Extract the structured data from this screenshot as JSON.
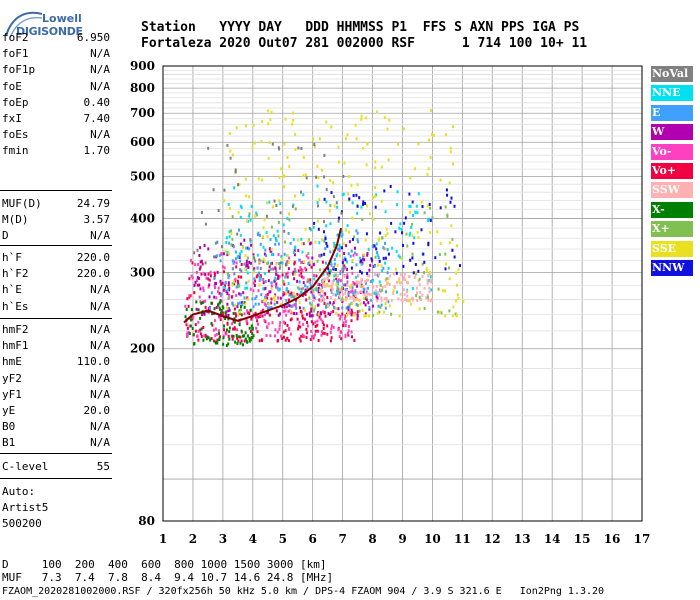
{
  "logo": {
    "line1": "Lowell",
    "line2": "DIGISONDE"
  },
  "header": {
    "line1": "Station   YYYY DAY   DDD HHMMSS P1  FFS S AXN PPS IGA PS",
    "line2": "Fortaleza 2020 Out07 281 002000 RSF      1 714 100 10+ 11"
  },
  "params_top": [
    {
      "label": "foF2",
      "value": "6.950"
    },
    {
      "label": "foF1",
      "value": "N/A"
    },
    {
      "label": "foF1p",
      "value": "N/A"
    },
    {
      "label": "foE",
      "value": "N/A"
    },
    {
      "label": "foEp",
      "value": "0.40"
    },
    {
      "label": "fxI",
      "value": "7.40"
    },
    {
      "label": "foEs",
      "value": "N/A"
    },
    {
      "label": "fmin",
      "value": "1.70"
    }
  ],
  "params_muf": [
    {
      "label": "MUF(D)",
      "value": "24.79"
    },
    {
      "label": "M(D)",
      "value": "3.57"
    },
    {
      "label": "D",
      "value": "N/A"
    }
  ],
  "params_h": [
    {
      "label": "h`F",
      "value": "220.0"
    },
    {
      "label": "h`F2",
      "value": "220.0"
    },
    {
      "label": "h`E",
      "value": "N/A"
    },
    {
      "label": "h`Es",
      "value": "N/A"
    }
  ],
  "params_hm": [
    {
      "label": "hmF2",
      "value": "N/A"
    },
    {
      "label": "hmF1",
      "value": "N/A"
    },
    {
      "label": "hmE",
      "value": "110.0"
    },
    {
      "label": "yF2",
      "value": "N/A"
    },
    {
      "label": "yF1",
      "value": "N/A"
    },
    {
      "label": "yE",
      "value": "20.0"
    },
    {
      "label": "B0",
      "value": "N/A"
    },
    {
      "label": "B1",
      "value": "N/A"
    }
  ],
  "clevel": {
    "label": "C-level",
    "value": "55"
  },
  "auto": {
    "line1": "Auto:",
    "line2": "Artist5",
    "line3": "500200"
  },
  "footer": {
    "d_row": "D     100  200  400  600  800 1000 1500 3000 [km]",
    "muf_row": "MUF   7.3  7.4  7.8  8.4  9.4 10.7 14.6 24.8 [MHz]",
    "file_row": "FZAOM_2020281002000.RSF / 320fx256h 50 kHz 5.0 km / DPS-4 FZAOM 904 / 3.9 S 321.6 E   Ion2Png 1.3.20"
  },
  "legend": [
    {
      "label": "NoVal",
      "color": "#808080"
    },
    {
      "label": "NNE",
      "color": "#00e0f0"
    },
    {
      "label": "E",
      "color": "#40a0ff"
    },
    {
      "label": "W",
      "color": "#b000b0"
    },
    {
      "label": "Vo-",
      "color": "#ff40c0"
    },
    {
      "label": "Vo+",
      "color": "#f00040"
    },
    {
      "label": "SSW",
      "color": "#ffb0b0"
    },
    {
      "label": "X-",
      "color": "#008000"
    },
    {
      "label": "X+",
      "color": "#80c050"
    },
    {
      "label": "SSE",
      "color": "#e8e020"
    },
    {
      "label": "NNW",
      "color": "#1010e0"
    }
  ],
  "chart_data": {
    "type": "scatter",
    "title": "",
    "xlabel": "",
    "ylabel": "",
    "xlim": [
      1,
      17
    ],
    "ylim": [
      80,
      900
    ],
    "x_ticks": [
      1,
      2,
      3,
      4,
      5,
      6,
      7,
      8,
      9,
      10,
      11,
      12,
      13,
      14,
      15,
      16,
      17
    ],
    "y_ticks": [
      80,
      200,
      300,
      400,
      500,
      600,
      700,
      800,
      900
    ],
    "y_scale": "log",
    "grid": true,
    "legend_placement": "right",
    "trace": {
      "name": "",
      "color": "#800000",
      "x": [
        1.7,
        2.0,
        2.5,
        3.0,
        3.5,
        4.0,
        4.5,
        5.0,
        5.5,
        6.0,
        6.5,
        6.8,
        6.95
      ],
      "y": [
        230,
        240,
        245,
        238,
        232,
        238,
        245,
        252,
        262,
        278,
        310,
        345,
        380
      ]
    },
    "series": [
      {
        "name": "Vo+",
        "color": "#f00040",
        "region": {
          "x": [
            1.7,
            7.5
          ],
          "y": [
            210,
            320
          ]
        },
        "density": 260
      },
      {
        "name": "Vo-",
        "color": "#ff40c0",
        "region": {
          "x": [
            1.7,
            7.5
          ],
          "y": [
            215,
            340
          ]
        },
        "density": 220
      },
      {
        "name": "W",
        "color": "#b000b0",
        "region": {
          "x": [
            2.0,
            8.2
          ],
          "y": [
            240,
            360
          ]
        },
        "density": 200
      },
      {
        "name": "E",
        "color": "#40a0ff",
        "region": {
          "x": [
            2.5,
            8.5
          ],
          "y": [
            250,
            380
          ]
        },
        "density": 180
      },
      {
        "name": "NNE",
        "color": "#00e0f0",
        "region": {
          "x": [
            3.0,
            10.0
          ],
          "y": [
            270,
            480
          ]
        },
        "density": 150
      },
      {
        "name": "SSW",
        "color": "#ffb0b0",
        "region": {
          "x": [
            6.0,
            10.0
          ],
          "y": [
            260,
            300
          ]
        },
        "density": 160
      },
      {
        "name": "X-",
        "color": "#008000",
        "region": {
          "x": [
            1.7,
            4.0
          ],
          "y": [
            205,
            260
          ]
        },
        "density": 90
      },
      {
        "name": "X+",
        "color": "#80c050",
        "region": {
          "x": [
            3.0,
            10.8
          ],
          "y": [
            240,
            440
          ]
        },
        "density": 90
      },
      {
        "name": "SSE",
        "color": "#e8e020",
        "region": {
          "x": [
            3.0,
            11.0
          ],
          "y": [
            240,
            720
          ]
        },
        "density": 260
      },
      {
        "name": "NNW",
        "color": "#1010e0",
        "region": {
          "x": [
            6.0,
            10.9
          ],
          "y": [
            300,
            480
          ]
        },
        "density": 80
      },
      {
        "name": "NoVal",
        "color": "#808080",
        "region": {
          "x": [
            2.0,
            7.0
          ],
          "y": [
            300,
            600
          ]
        },
        "density": 60
      }
    ]
  }
}
